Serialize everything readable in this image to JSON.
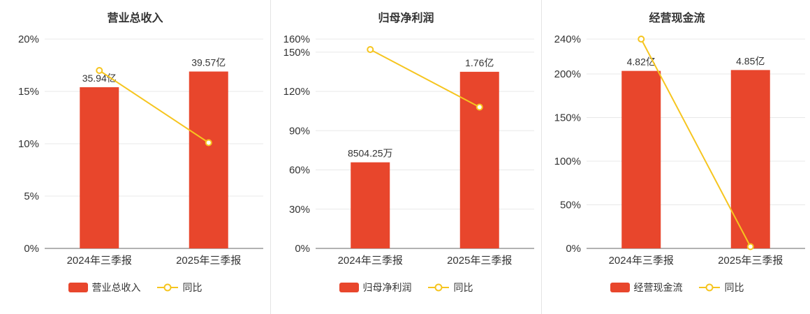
{
  "page": {
    "background": "#ffffff"
  },
  "colors": {
    "bar": "#e8462c",
    "line": "#f6c51f",
    "marker_fill": "#ffffff",
    "grid": "#e8e8e8",
    "axis": "#666666",
    "text": "#333333",
    "divider": "#e3e3e3"
  },
  "chart_data": [
    {
      "type": "bar",
      "title": "营业总收入",
      "categories": [
        "2024年三季报",
        "2025年三季报"
      ],
      "bar_series": {
        "name": "营业总收入",
        "value_labels": [
          "35.94亿",
          "39.57亿"
        ],
        "heights_pct": [
          15.4,
          16.9
        ]
      },
      "line_series": {
        "name": "同比",
        "values_pct": [
          17.0,
          10.1
        ]
      },
      "ylim": [
        0,
        20
      ],
      "yticks": [
        0,
        5,
        10,
        15,
        20
      ],
      "ytick_labels": [
        "0%",
        "5%",
        "10%",
        "15%",
        "20%"
      ],
      "legend_position": "bottom",
      "grid": true
    },
    {
      "type": "bar",
      "title": "归母净利润",
      "categories": [
        "2024年三季报",
        "2025年三季报"
      ],
      "bar_series": {
        "name": "归母净利润",
        "value_labels": [
          "8504.25万",
          "1.76亿"
        ],
        "heights_pct": [
          65.8,
          135.0
        ]
      },
      "line_series": {
        "name": "同比",
        "values_pct": [
          152.0,
          108.0
        ]
      },
      "ylim": [
        0,
        160
      ],
      "yticks": [
        0,
        30,
        60,
        90,
        120,
        150,
        160
      ],
      "ytick_labels": [
        "0%",
        "30%",
        "60%",
        "90%",
        "120%",
        "150%",
        "160%"
      ],
      "legend_position": "bottom",
      "grid": true
    },
    {
      "type": "bar",
      "title": "经营现金流",
      "categories": [
        "2024年三季报",
        "2025年三季报"
      ],
      "bar_series": {
        "name": "经营现金流",
        "value_labels": [
          "4.82亿",
          "4.85亿"
        ],
        "heights_pct": [
          203.5,
          204.5
        ]
      },
      "line_series": {
        "name": "同比",
        "values_pct": [
          240.0,
          2.0
        ]
      },
      "ylim": [
        0,
        240
      ],
      "yticks": [
        0,
        50,
        100,
        150,
        200,
        240
      ],
      "ytick_labels": [
        "0%",
        "50%",
        "100%",
        "150%",
        "200%",
        "240%"
      ],
      "legend_position": "bottom",
      "grid": true
    }
  ]
}
